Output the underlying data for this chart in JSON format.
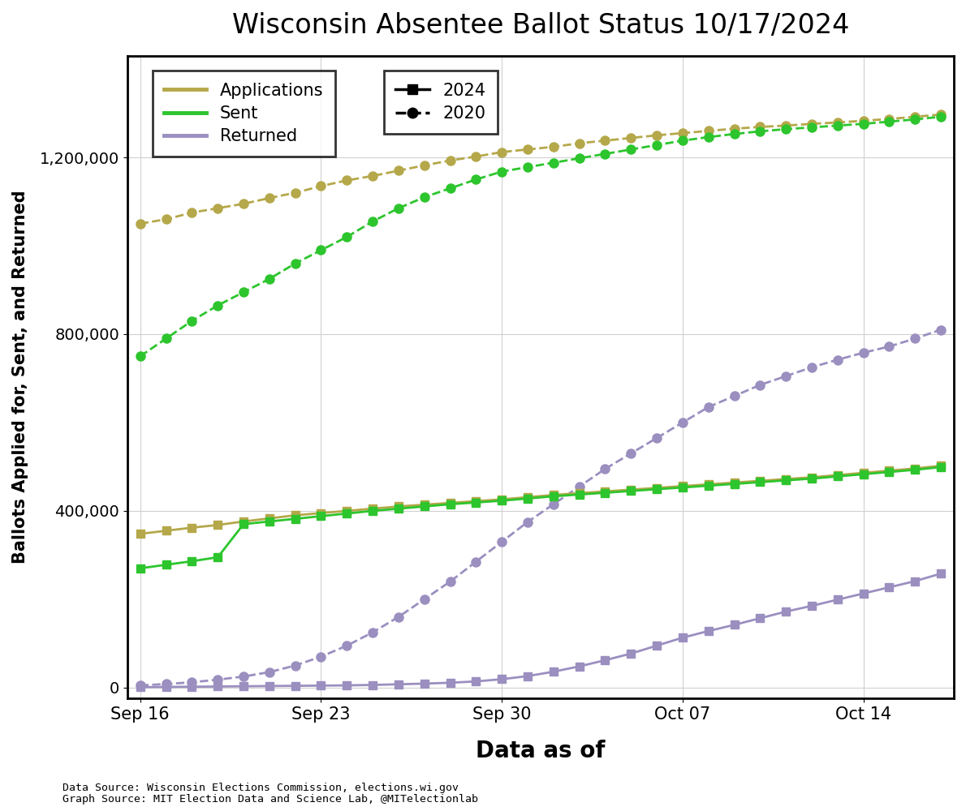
{
  "title": "Wisconsin Absentee Ballot Status 10/17/2024",
  "xlabel": "Data as of",
  "ylabel": "Ballots Applied for, Sent, and Returned",
  "footnote1": "Data Source: Wisconsin Elections Commission, elections.wi.gov",
  "footnote2": "Graph Source: MIT Election Data and Science Lab, @MITelectionlab",
  "colors": {
    "applications": "#b5a84a",
    "sent": "#2dc52d",
    "returned": "#9b8fc0"
  },
  "2020": {
    "x": [
      0,
      1,
      2,
      3,
      4,
      5,
      6,
      7,
      8,
      9,
      10,
      11,
      12,
      13,
      14,
      15,
      16,
      17,
      18,
      19,
      20,
      21,
      22,
      23,
      24,
      25,
      26,
      27,
      28,
      29,
      30,
      31
    ],
    "applications": [
      1050000,
      1060000,
      1075000,
      1085000,
      1095000,
      1108000,
      1120000,
      1135000,
      1148000,
      1158000,
      1170000,
      1182000,
      1193000,
      1202000,
      1212000,
      1218000,
      1224000,
      1232000,
      1238000,
      1244000,
      1250000,
      1255000,
      1260000,
      1265000,
      1269000,
      1272000,
      1276000,
      1279000,
      1283000,
      1287000,
      1292000,
      1297000
    ],
    "sent": [
      750000,
      790000,
      830000,
      865000,
      895000,
      925000,
      960000,
      990000,
      1020000,
      1055000,
      1085000,
      1110000,
      1130000,
      1150000,
      1168000,
      1178000,
      1188000,
      1198000,
      1208000,
      1218000,
      1228000,
      1238000,
      1246000,
      1253000,
      1259000,
      1264000,
      1268000,
      1272000,
      1276000,
      1281000,
      1286000,
      1292000
    ],
    "returned": [
      5000,
      8000,
      12000,
      18000,
      25000,
      35000,
      50000,
      70000,
      95000,
      125000,
      160000,
      200000,
      240000,
      285000,
      330000,
      375000,
      415000,
      455000,
      495000,
      530000,
      565000,
      600000,
      635000,
      660000,
      685000,
      705000,
      725000,
      742000,
      758000,
      772000,
      790000,
      810000
    ]
  },
  "2024": {
    "x": [
      0,
      1,
      2,
      3,
      4,
      5,
      6,
      7,
      8,
      9,
      10,
      11,
      12,
      13,
      14,
      15,
      16,
      17,
      18,
      19,
      20,
      21,
      22,
      23,
      24,
      25,
      26,
      27,
      28,
      29,
      30,
      31
    ],
    "applications": [
      348000,
      355000,
      362000,
      368000,
      376000,
      383000,
      390000,
      395000,
      400000,
      405000,
      410000,
      414000,
      418000,
      422000,
      426000,
      431000,
      436000,
      440000,
      444000,
      448000,
      452000,
      456000,
      460000,
      464000,
      468000,
      472000,
      476000,
      481000,
      486000,
      491000,
      496000,
      502000
    ],
    "sent": [
      270000,
      278000,
      286000,
      295000,
      370000,
      376000,
      382000,
      388000,
      394000,
      400000,
      405000,
      410000,
      415000,
      419000,
      423000,
      428000,
      433000,
      437000,
      441000,
      445000,
      449000,
      453000,
      457000,
      461000,
      465000,
      469000,
      473000,
      478000,
      483000,
      488000,
      493000,
      499000
    ],
    "returned": [
      1000,
      1500,
      2000,
      2500,
      3000,
      3500,
      4000,
      4500,
      5000,
      6000,
      7500,
      9000,
      11000,
      14000,
      19000,
      26000,
      36000,
      48000,
      62000,
      77000,
      95000,
      113000,
      128000,
      142000,
      157000,
      172000,
      185000,
      199000,
      213000,
      227000,
      241000,
      258000
    ]
  },
  "ylim": [
    -25000,
    1430000
  ],
  "yticks": [
    0,
    400000,
    800000,
    1200000
  ],
  "ytick_labels": [
    "0",
    "400,000",
    "800,000",
    "1,200,000"
  ],
  "xtick_positions": [
    0,
    7,
    14,
    21,
    28
  ],
  "xtick_labels": [
    "Sep 16",
    "Sep 23",
    "Sep 30",
    "Oct 07",
    "Oct 14"
  ]
}
